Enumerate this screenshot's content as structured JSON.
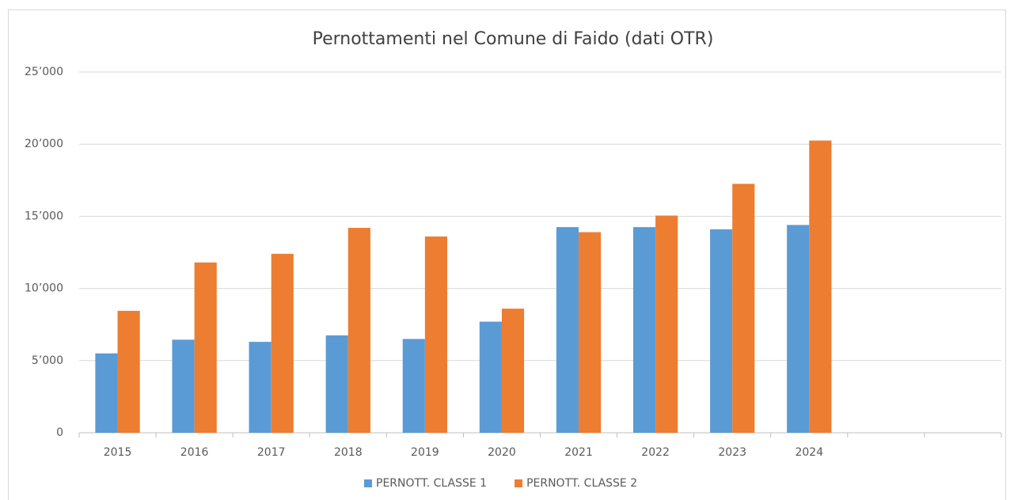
{
  "chart_data": {
    "type": "bar",
    "title": "Pernottamenti nel Comune di Faido (dati OTR)",
    "categories": [
      "2015",
      "2016",
      "2017",
      "2018",
      "2019",
      "2020",
      "2021",
      "2022",
      "2023",
      "2024",
      null,
      null
    ],
    "series": [
      {
        "name": "PERNOTT. CLASSE 1",
        "color": "#5b9bd5",
        "values": [
          5500,
          6450,
          6300,
          6750,
          6500,
          7700,
          14250,
          14250,
          14100,
          14400,
          null,
          null
        ]
      },
      {
        "name": "PERNOTT. CLASSE 2",
        "color": "#ed7d31",
        "values": [
          8450,
          11800,
          12400,
          14200,
          13600,
          8600,
          13900,
          15050,
          17250,
          20250,
          null,
          null
        ]
      }
    ],
    "ylim": [
      0,
      25000
    ],
    "yticks": [
      0,
      {
        "value": 5000,
        "label": "5’000"
      },
      {
        "value": 10000,
        "label": "10’000"
      },
      {
        "value": 15000,
        "label": "15’000"
      },
      {
        "value": 20000,
        "label": "20’000"
      },
      {
        "value": 25000,
        "label": "25’000"
      }
    ],
    "grid": true,
    "legend": "bottom"
  }
}
